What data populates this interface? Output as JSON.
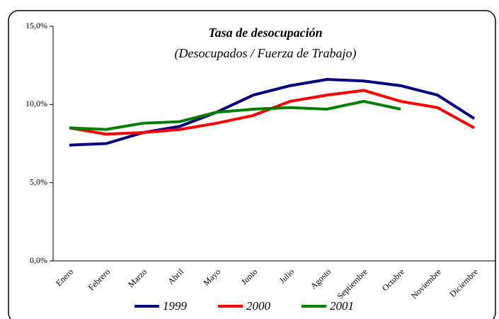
{
  "chart_data": {
    "type": "line",
    "title": "Tasa de desocupación",
    "subtitle": "(Desocupados / Fuerza de Trabajo)",
    "categories": [
      "Enero",
      "Febrero",
      "Marzo",
      "Abril",
      "Mayo",
      "Junio",
      "Julio",
      "Agosto",
      "Septiembre",
      "Octubre",
      "Noviembre",
      "Diciembre"
    ],
    "series": [
      {
        "name": "1999",
        "color": "#000080",
        "values": [
          7.4,
          7.5,
          8.2,
          8.6,
          9.5,
          10.6,
          11.2,
          11.6,
          11.5,
          11.2,
          10.6,
          9.1
        ]
      },
      {
        "name": "2000",
        "color": "#ff0000",
        "values": [
          8.5,
          8.1,
          8.2,
          8.4,
          8.8,
          9.3,
          10.2,
          10.6,
          10.9,
          10.2,
          9.8,
          8.5
        ]
      },
      {
        "name": "2001",
        "color": "#008000",
        "values": [
          8.5,
          8.4,
          8.8,
          8.9,
          9.5,
          9.7,
          9.8,
          9.7,
          10.2,
          9.7,
          null,
          null
        ]
      }
    ],
    "ylim": [
      0,
      15
    ],
    "yticks": [
      {
        "value": 0,
        "label": "0,0%"
      },
      {
        "value": 5,
        "label": "5,0%"
      },
      {
        "value": 10,
        "label": "10,0%"
      },
      {
        "value": 15,
        "label": "15,0%"
      }
    ],
    "legend": "bottom"
  }
}
